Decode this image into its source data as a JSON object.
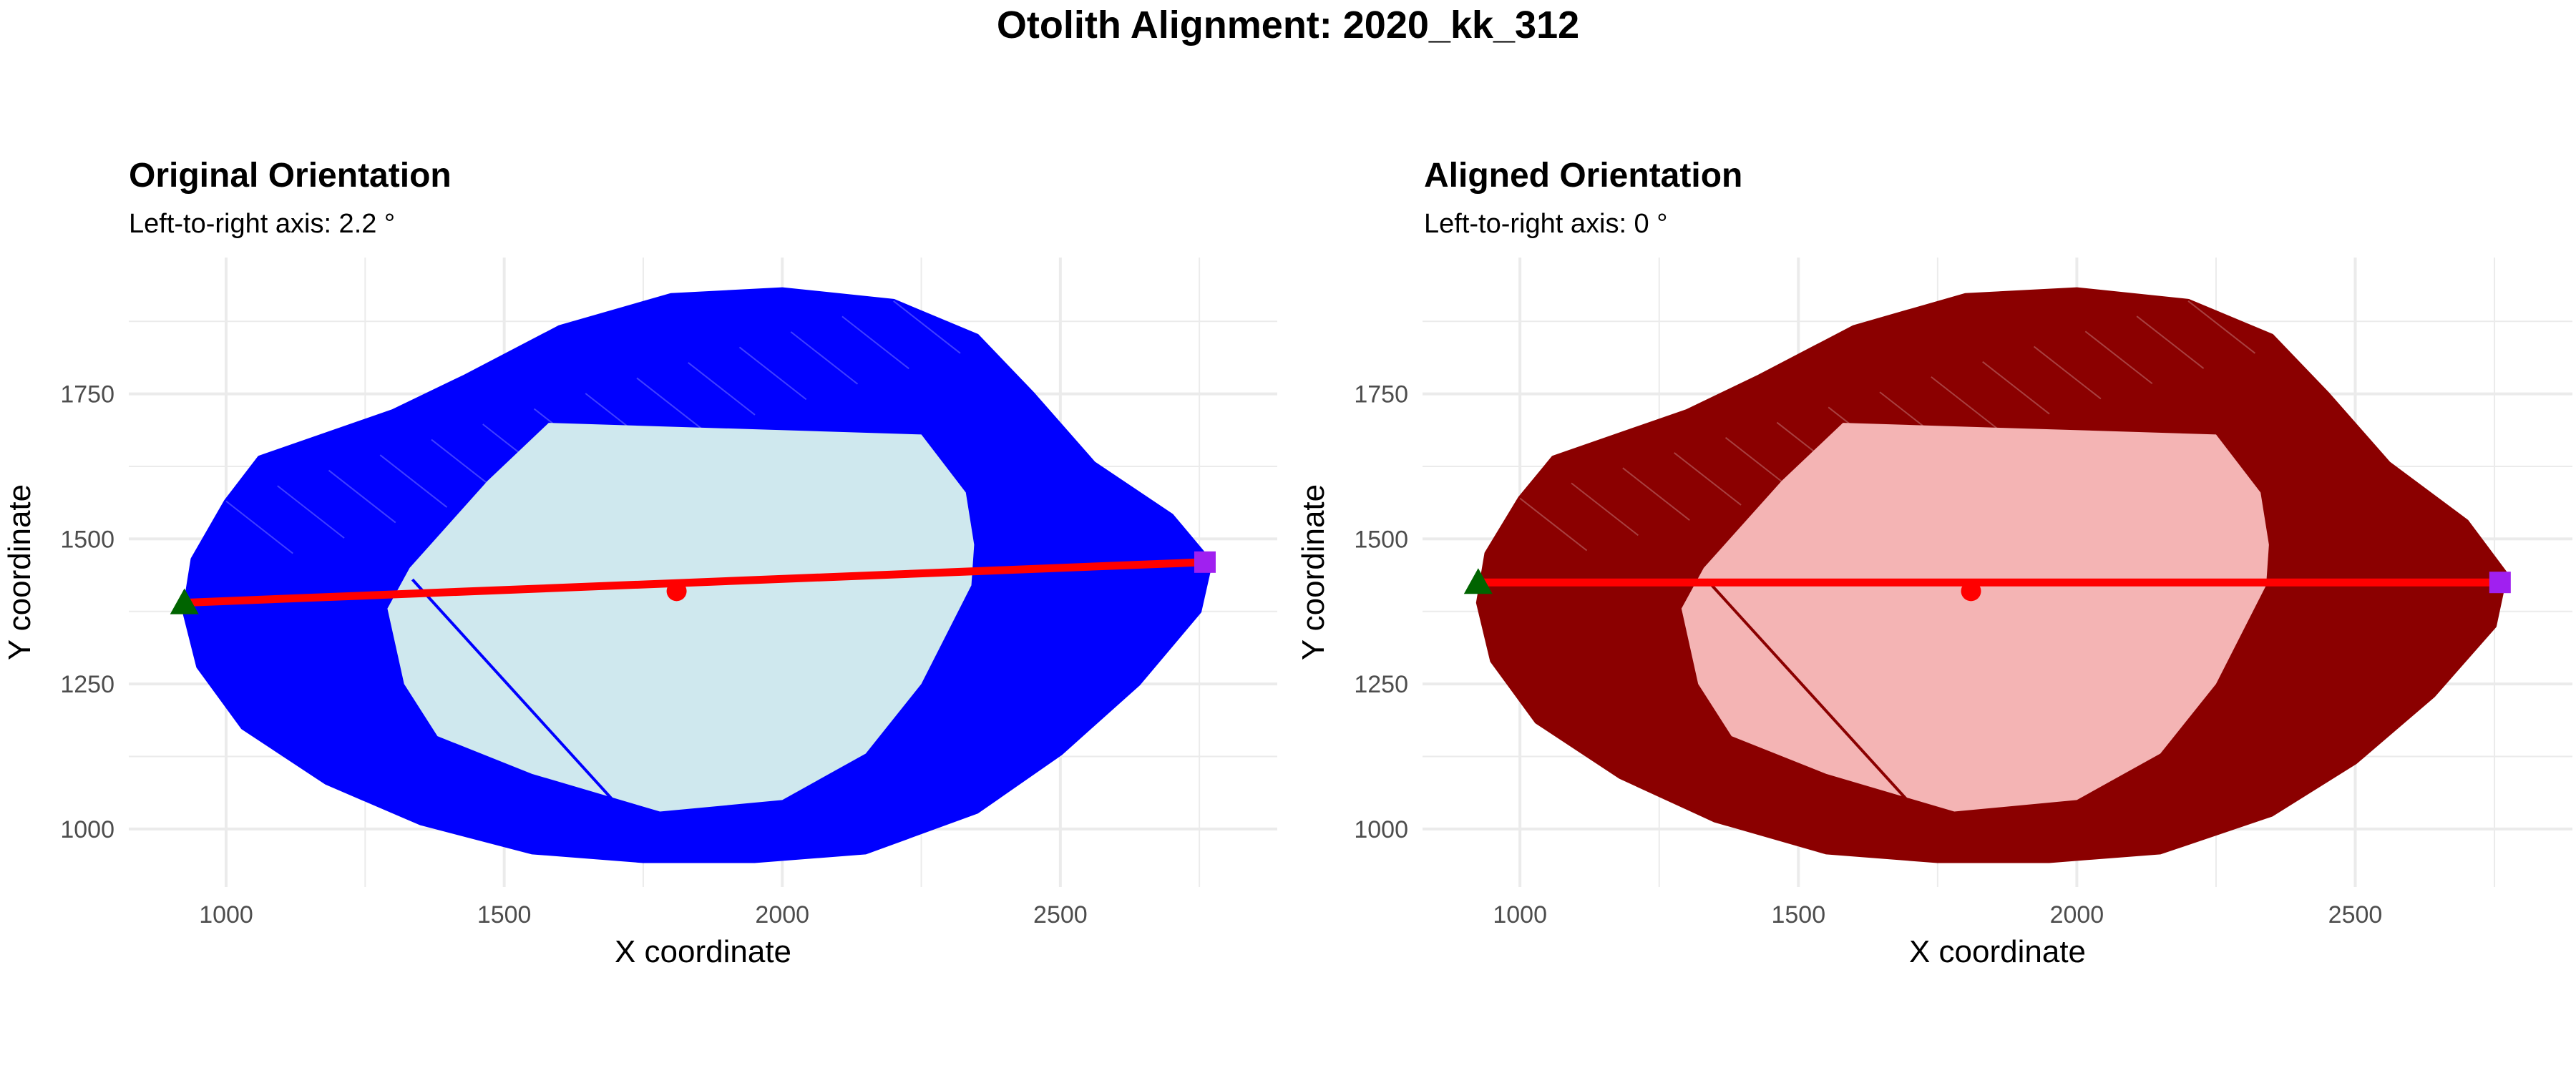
{
  "figure": {
    "title": "Otolith Alignment: 2020_kk_312"
  },
  "colors": {
    "left_fill": "#0000ff",
    "left_inner": "#cfe8ee",
    "right_fill": "#8b0000",
    "right_inner": "#f4b4b4",
    "axis_line": "#ff0000",
    "centroid": "#ff0000",
    "left_marker": "#006400",
    "right_marker": "#a020f0",
    "grid": "#ebebeb"
  },
  "chart_data": [
    {
      "type": "scatter",
      "title": "Original Orientation",
      "subtitle": "Left-to-right axis: 2.2 °",
      "xlabel": "X coordinate",
      "ylabel": "Y coordinate",
      "xlim": [
        825,
        2890
      ],
      "ylim": [
        900,
        1985
      ],
      "x_ticks": [
        1000,
        1500,
        2000,
        2500
      ],
      "y_ticks": [
        1000,
        1250,
        1500,
        1750
      ],
      "grid": true,
      "legend": "none",
      "outline_color": "blue",
      "inner_color": "lightblue",
      "axis_line": {
        "start": [
          925,
          1390
        ],
        "end": [
          2760,
          1460
        ]
      },
      "centroid": [
        1810,
        1410
      ],
      "left_point": [
        925,
        1390
      ],
      "right_point": [
        2760,
        1460
      ],
      "outline": [
        [
          925,
          1375
        ],
        [
          940,
          1465
        ],
        [
          1000,
          1565
        ],
        [
          1060,
          1640
        ],
        [
          1300,
          1720
        ],
        [
          1430,
          1780
        ],
        [
          1600,
          1865
        ],
        [
          1800,
          1920
        ],
        [
          2000,
          1930
        ],
        [
          2200,
          1910
        ],
        [
          2350,
          1850
        ],
        [
          2450,
          1750
        ],
        [
          2560,
          1630
        ],
        [
          2700,
          1540
        ],
        [
          2770,
          1460
        ],
        [
          2750,
          1375
        ],
        [
          2640,
          1250
        ],
        [
          2500,
          1130
        ],
        [
          2350,
          1030
        ],
        [
          2150,
          960
        ],
        [
          1950,
          945
        ],
        [
          1750,
          945
        ],
        [
          1550,
          960
        ],
        [
          1350,
          1010
        ],
        [
          1180,
          1080
        ],
        [
          1030,
          1175
        ],
        [
          950,
          1280
        ]
      ],
      "inner": [
        [
          1580,
          1700
        ],
        [
          2250,
          1680
        ],
        [
          2330,
          1580
        ],
        [
          2345,
          1490
        ],
        [
          2340,
          1420
        ],
        [
          2250,
          1250
        ],
        [
          2150,
          1130
        ],
        [
          2000,
          1050
        ],
        [
          1780,
          1030
        ],
        [
          1550,
          1095
        ],
        [
          1380,
          1160
        ],
        [
          1320,
          1250
        ],
        [
          1290,
          1380
        ],
        [
          1330,
          1450
        ],
        [
          1470,
          1600
        ]
      ],
      "inner_chord": {
        "start": [
          1335,
          1430
        ],
        "end": [
          1700,
          1045
        ]
      }
    },
    {
      "type": "scatter",
      "title": "Aligned Orientation",
      "subtitle": "Left-to-right axis: 0 °",
      "xlabel": "X coordinate",
      "ylabel": "Y coordinate",
      "xlim": [
        825,
        2890
      ],
      "ylim": [
        900,
        1985
      ],
      "x_ticks": [
        1000,
        1500,
        2000,
        2500
      ],
      "y_ticks": [
        1000,
        1250,
        1500,
        1750
      ],
      "grid": true,
      "legend": "none",
      "outline_color": "darkred",
      "inner_color": "pink",
      "axis_line": {
        "start": [
          925,
          1425
        ],
        "end": [
          2760,
          1425
        ]
      },
      "centroid": [
        1810,
        1410
      ],
      "left_point": [
        925,
        1425
      ],
      "right_point": [
        2760,
        1425
      ],
      "outline": [
        [
          925,
          1390
        ],
        [
          940,
          1475
        ],
        [
          1000,
          1570
        ],
        [
          1060,
          1640
        ],
        [
          1300,
          1720
        ],
        [
          1430,
          1780
        ],
        [
          1600,
          1865
        ],
        [
          1800,
          1920
        ],
        [
          2000,
          1930
        ],
        [
          2200,
          1910
        ],
        [
          2350,
          1850
        ],
        [
          2450,
          1750
        ],
        [
          2560,
          1630
        ],
        [
          2700,
          1530
        ],
        [
          2770,
          1440
        ],
        [
          2750,
          1350
        ],
        [
          2640,
          1230
        ],
        [
          2500,
          1115
        ],
        [
          2350,
          1025
        ],
        [
          2150,
          960
        ],
        [
          1950,
          945
        ],
        [
          1750,
          945
        ],
        [
          1550,
          960
        ],
        [
          1350,
          1015
        ],
        [
          1180,
          1090
        ],
        [
          1030,
          1185
        ],
        [
          950,
          1290
        ]
      ],
      "inner": [
        [
          1580,
          1700
        ],
        [
          2250,
          1680
        ],
        [
          2330,
          1580
        ],
        [
          2345,
          1490
        ],
        [
          2340,
          1420
        ],
        [
          2250,
          1250
        ],
        [
          2150,
          1130
        ],
        [
          2000,
          1050
        ],
        [
          1780,
          1030
        ],
        [
          1550,
          1095
        ],
        [
          1380,
          1160
        ],
        [
          1320,
          1250
        ],
        [
          1290,
          1380
        ],
        [
          1330,
          1450
        ],
        [
          1470,
          1600
        ]
      ],
      "inner_chord": {
        "start": [
          1335,
          1430
        ],
        "end": [
          1700,
          1045
        ]
      }
    }
  ]
}
